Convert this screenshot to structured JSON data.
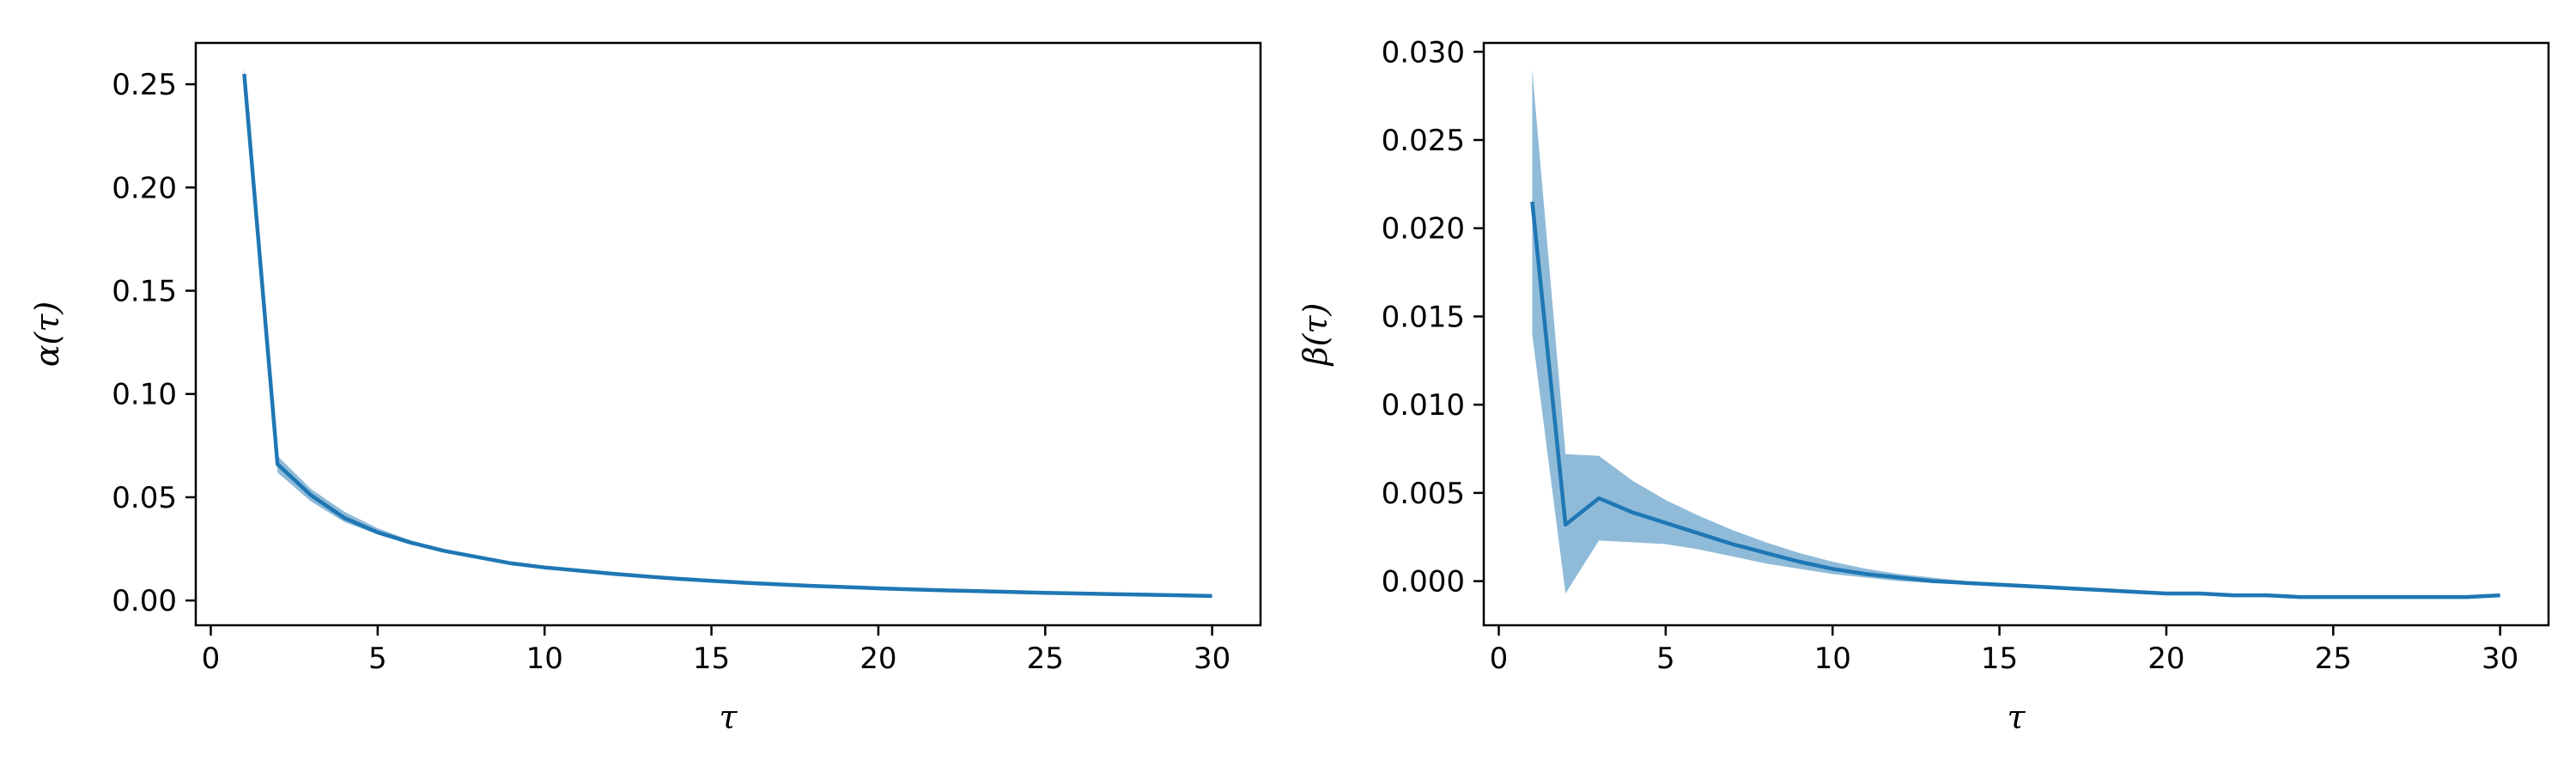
{
  "colors": {
    "line": "#1f77b4",
    "band": "#1f77b4",
    "band_opacity": 0.5,
    "axes": "#000000"
  },
  "chart_data": [
    {
      "type": "line",
      "xlabel": "τ",
      "ylabel": "α(τ)",
      "xlim": [
        -0.45,
        31.45
      ],
      "ylim": [
        -0.012,
        0.27
      ],
      "xticks": [
        0,
        5,
        10,
        15,
        20,
        25,
        30
      ],
      "xtick_labels": [
        "0",
        "5",
        "10",
        "15",
        "20",
        "25",
        "30"
      ],
      "yticks": [
        0,
        0.05,
        0.1,
        0.15,
        0.2,
        0.25
      ],
      "ytick_labels": [
        "0.00",
        "0.05",
        "0.10",
        "0.15",
        "0.20",
        "0.25"
      ],
      "grid": false,
      "series": [
        {
          "x": [
            1,
            2,
            3,
            4,
            5,
            6,
            7,
            8,
            9,
            10,
            11,
            12,
            13,
            14,
            15,
            16,
            17,
            18,
            19,
            20,
            21,
            22,
            23,
            24,
            25,
            26,
            27,
            28,
            29,
            30
          ],
          "values": [
            0.255,
            0.066,
            0.051,
            0.04,
            0.033,
            0.028,
            0.024,
            0.021,
            0.018,
            0.016,
            0.0145,
            0.013,
            0.0117,
            0.0105,
            0.0095,
            0.0086,
            0.0078,
            0.0071,
            0.0065,
            0.0059,
            0.0054,
            0.0049,
            0.0045,
            0.0041,
            0.0037,
            0.0034,
            0.0031,
            0.0028,
            0.0025,
            0.0022
          ],
          "lower": [
            0.253,
            0.062,
            0.048,
            0.038,
            0.032,
            0.027,
            0.0235,
            0.0205,
            0.0178,
            0.0158,
            0.0143,
            0.0129,
            0.0116,
            0.0104,
            0.0094,
            0.0085,
            0.0077,
            0.007,
            0.0064,
            0.0058,
            0.0053,
            0.0048,
            0.0044,
            0.004,
            0.0036,
            0.0033,
            0.003,
            0.0027,
            0.0024,
            0.0021
          ],
          "upper": [
            0.258,
            0.07,
            0.054,
            0.043,
            0.035,
            0.029,
            0.0248,
            0.0215,
            0.0183,
            0.0163,
            0.0147,
            0.0132,
            0.0118,
            0.0106,
            0.0096,
            0.0087,
            0.0079,
            0.0072,
            0.0066,
            0.006,
            0.0055,
            0.005,
            0.0046,
            0.0042,
            0.0038,
            0.0035,
            0.0032,
            0.0029,
            0.0026,
            0.0023
          ]
        }
      ]
    },
    {
      "type": "line",
      "xlabel": "τ",
      "ylabel": "β(τ)",
      "xlim": [
        -0.45,
        31.45
      ],
      "ylim": [
        -0.0025,
        0.0305
      ],
      "xticks": [
        0,
        5,
        10,
        15,
        20,
        25,
        30
      ],
      "xtick_labels": [
        "0",
        "5",
        "10",
        "15",
        "20",
        "25",
        "30"
      ],
      "yticks": [
        0,
        0.005,
        0.01,
        0.015,
        0.02,
        0.025,
        0.03
      ],
      "ytick_labels": [
        "0.000",
        "0.005",
        "0.010",
        "0.015",
        "0.020",
        "0.025",
        "0.030"
      ],
      "grid": false,
      "series": [
        {
          "x": [
            1,
            2,
            3,
            4,
            5,
            6,
            7,
            8,
            9,
            10,
            11,
            12,
            13,
            14,
            15,
            16,
            17,
            18,
            19,
            20,
            21,
            22,
            23,
            24,
            25,
            26,
            27,
            28,
            29,
            30
          ],
          "values": [
            0.0215,
            0.0032,
            0.0047,
            0.0039,
            0.0033,
            0.0027,
            0.0021,
            0.0016,
            0.0011,
            0.0007,
            0.0004,
            0.0002,
            0.0,
            -0.0001,
            -0.0002,
            -0.0003,
            -0.0004,
            -0.0005,
            -0.0006,
            -0.0007,
            -0.0007,
            -0.0008,
            -0.0008,
            -0.0009,
            -0.0009,
            -0.0009,
            -0.0009,
            -0.0009,
            -0.0009,
            -0.0008
          ],
          "lower": [
            0.014,
            -0.0007,
            0.0023,
            0.0022,
            0.0021,
            0.0018,
            0.0014,
            0.001,
            0.0007,
            0.0004,
            0.0002,
            0.0,
            -0.0001,
            -0.0002,
            -0.0003,
            -0.0004,
            -0.0005,
            -0.0006,
            -0.0006,
            -0.0007,
            -0.0008,
            -0.0008,
            -0.0009,
            -0.0009,
            -0.0009,
            -0.001,
            -0.001,
            -0.001,
            -0.001,
            -0.0009
          ],
          "upper": [
            0.029,
            0.0072,
            0.0071,
            0.0057,
            0.0046,
            0.0037,
            0.0029,
            0.0022,
            0.0016,
            0.0011,
            0.0007,
            0.0004,
            0.0002,
            0.0,
            -0.0001,
            -0.0002,
            -0.0003,
            -0.0004,
            -0.0005,
            -0.0006,
            -0.0006,
            -0.0007,
            -0.0007,
            -0.0008,
            -0.0008,
            -0.0008,
            -0.0008,
            -0.0008,
            -0.0008,
            -0.0007
          ]
        }
      ]
    }
  ]
}
